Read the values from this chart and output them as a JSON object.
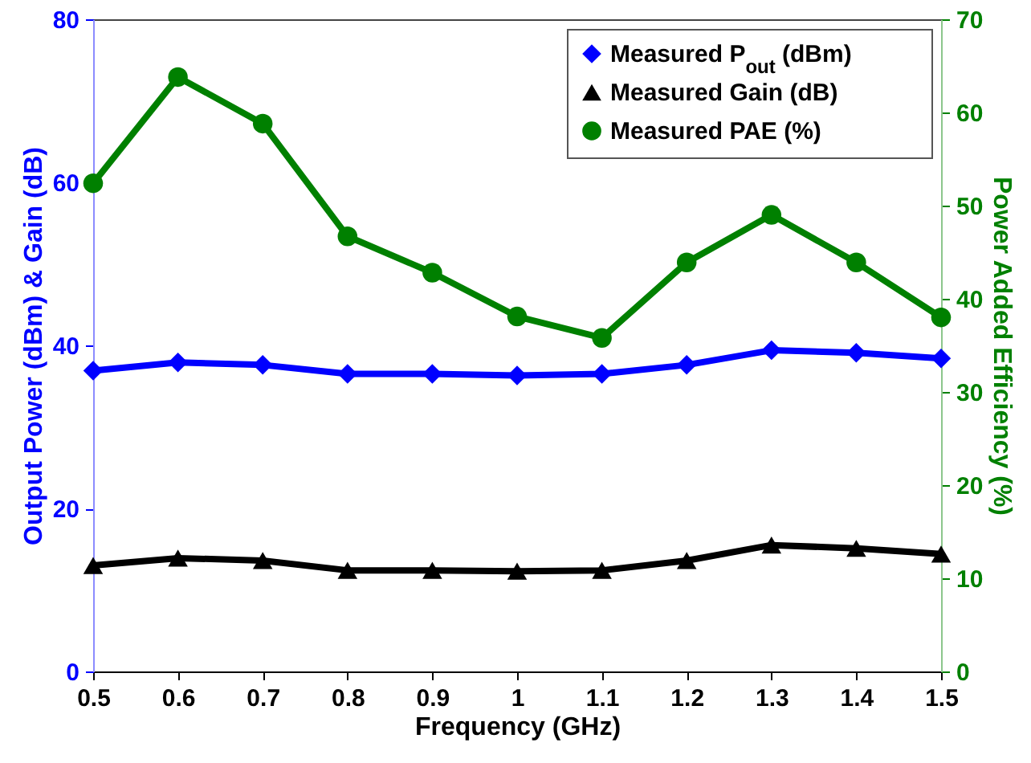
{
  "chart_data": {
    "type": "line",
    "xlabel": "Frequency (GHz)",
    "ylabel": "Output Power (dBm) & Gain (dB)",
    "y2label": "Power Added Efficiency (%)",
    "x": [
      0.5,
      0.6,
      0.7,
      0.8,
      0.9,
      1,
      1.1,
      1.2,
      1.3,
      1.4,
      1.5
    ],
    "series": [
      {
        "name": "Measured P$_{out}$ (dBm)",
        "color": "#0000ff",
        "marker": "diamond",
        "values": [
          36.9,
          37.9,
          37.6,
          36.5,
          36.5,
          36.3,
          36.5,
          37.6,
          39.4,
          39.1,
          38.4
        ]
      },
      {
        "name": "Measured Gain (dB)",
        "color": "#000000",
        "marker": "triangle",
        "values": [
          13.0,
          13.9,
          13.6,
          12.4,
          12.4,
          12.3,
          12.4,
          13.6,
          15.5,
          15.1,
          14.4
        ]
      },
      {
        "name": "Measured PAE (%)",
        "color": "#008000",
        "marker": "circle",
        "axis": "y2",
        "values": [
          52.4,
          63.8,
          58.8,
          46.7,
          42.8,
          38.1,
          35.8,
          43.9,
          49.0,
          43.9,
          38.0
        ]
      }
    ],
    "xlim": [
      0.5,
      1.5
    ],
    "xticks": [
      0.5,
      0.6,
      0.7,
      0.8,
      0.9,
      1,
      1.1,
      1.2,
      1.3,
      1.4,
      1.5
    ],
    "ylim": [
      0,
      80
    ],
    "yticks": [
      0,
      20,
      40,
      60,
      80
    ],
    "y2lim": [
      0,
      70
    ],
    "y2ticks": [
      0,
      10,
      20,
      30,
      40,
      50,
      60,
      70
    ],
    "legend": "top right",
    "grid": false,
    "line_style": "solid"
  }
}
